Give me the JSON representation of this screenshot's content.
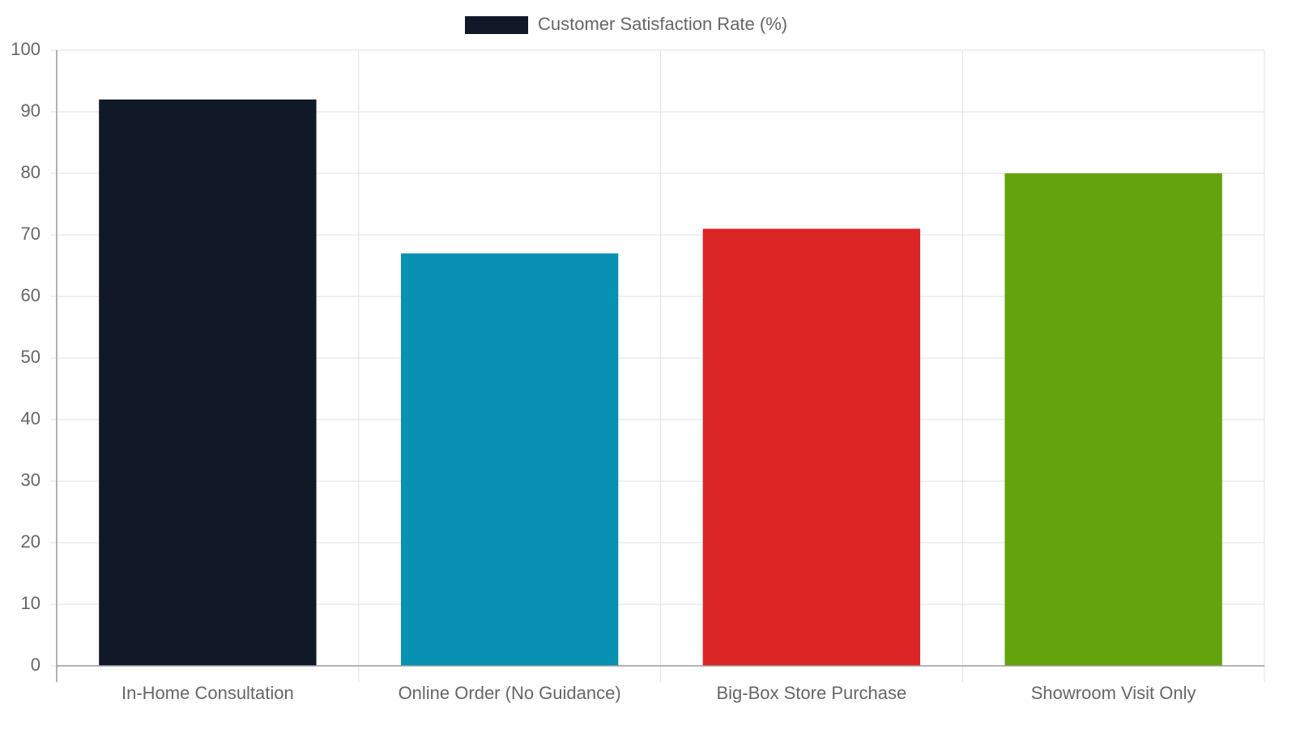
{
  "chart_data": {
    "type": "bar",
    "categories": [
      "In-Home Consultation",
      "Online Order (No Guidance)",
      "Big-Box Store Purchase",
      "Showroom Visit Only"
    ],
    "series": [
      {
        "name": "Customer Satisfaction Rate (%)",
        "colors": [
          "#111827",
          "#0891b2",
          "#dc2626",
          "#65a30d"
        ],
        "values": [
          92,
          67,
          71,
          80
        ]
      }
    ],
    "ylim": [
      0,
      100
    ],
    "yticks": [
      0,
      10,
      20,
      30,
      40,
      50,
      60,
      70,
      80,
      90,
      100
    ],
    "grid": true,
    "legend": "top"
  }
}
